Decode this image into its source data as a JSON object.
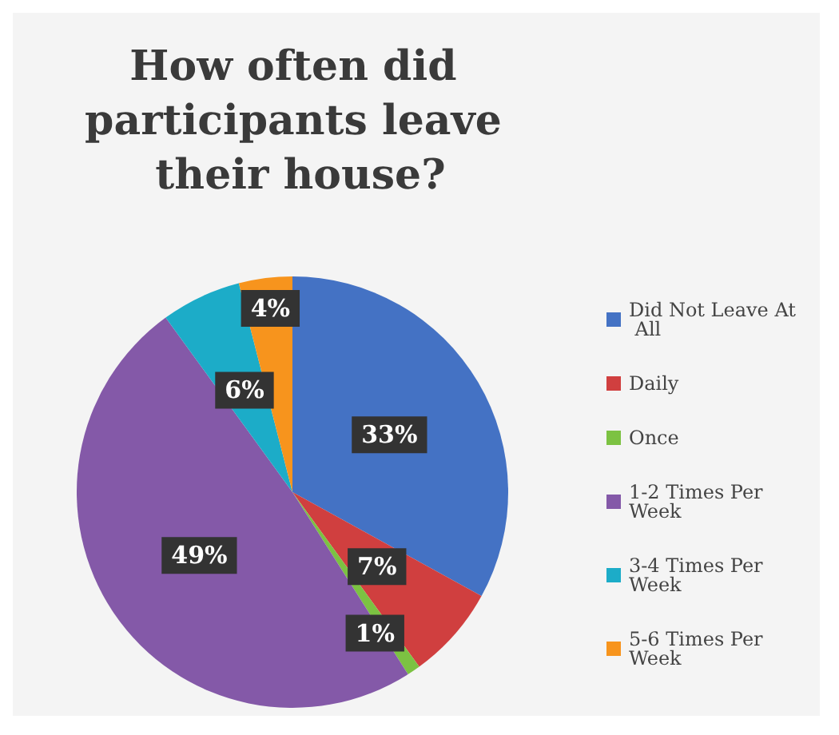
{
  "chart_data": {
    "type": "pie",
    "title": "How often did participants leave their house?",
    "categories": [
      "Did Not Leave At All",
      "Daily",
      "Once",
      "1-2 Times Per Week",
      "3-4 Times Per Week",
      "5-6 Times Per Week"
    ],
    "values": [
      33,
      7,
      1,
      49,
      6,
      4
    ],
    "colors": [
      "#4472c4",
      "#d03f3f",
      "#7cc242",
      "#8459a8",
      "#1cacc8",
      "#f7941d"
    ],
    "value_labels": [
      "33%",
      "7%",
      "1%",
      "49%",
      "6%",
      "4%"
    ],
    "legend": "right"
  }
}
